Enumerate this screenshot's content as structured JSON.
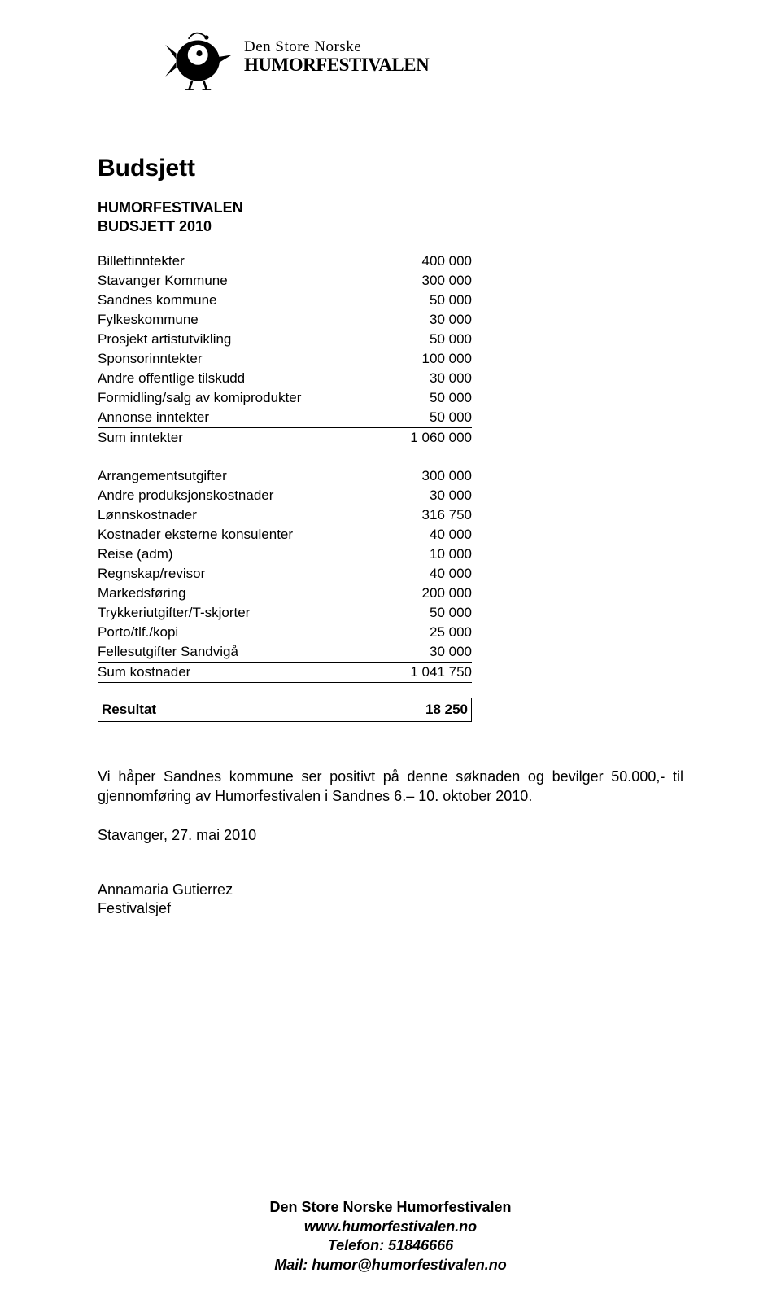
{
  "logo": {
    "line1": "Den Store Norske",
    "line2": "HUMORFESTIVALEN"
  },
  "title": "Budsjett",
  "subtitle1": "HUMORFESTIVALEN",
  "subtitle2": "BUDSJETT 2010",
  "income_rows": [
    {
      "label": "Billettinntekter",
      "value": "400 000"
    },
    {
      "label": "Stavanger Kommune",
      "value": "300 000"
    },
    {
      "label": "Sandnes kommune",
      "value": "50 000"
    },
    {
      "label": "Fylkeskommune",
      "value": "30 000"
    },
    {
      "label": "Prosjekt artistutvikling",
      "value": "50 000"
    },
    {
      "label": "Sponsorinntekter",
      "value": "100 000"
    },
    {
      "label": "Andre offentlige tilskudd",
      "value": "30 000"
    },
    {
      "label": "Formidling/salg av komiprodukter",
      "value": "50 000"
    },
    {
      "label": "Annonse inntekter",
      "value": "50 000"
    }
  ],
  "income_sum": {
    "label": "Sum inntekter",
    "value": "1 060 000"
  },
  "expense_rows": [
    {
      "label": "Arrangementsutgifter",
      "value": "300 000"
    },
    {
      "label": "Andre produksjonskostnader",
      "value": "30 000"
    },
    {
      "label": "Lønnskostnader",
      "value": "316 750"
    },
    {
      "label": "Kostnader eksterne konsulenter",
      "value": "40 000"
    },
    {
      "label": "Reise (adm)",
      "value": "10 000"
    },
    {
      "label": "Regnskap/revisor",
      "value": "40 000"
    },
    {
      "label": "Markedsføring",
      "value": "200 000"
    },
    {
      "label": "Trykkeriutgifter/T-skjorter",
      "value": "50 000"
    },
    {
      "label": "Porto/tlf./kopi",
      "value": "25 000"
    },
    {
      "label": "Fellesutgifter Sandvigå",
      "value": "30 000"
    }
  ],
  "expense_sum": {
    "label": "Sum kostnader",
    "value": "1 041 750"
  },
  "result": {
    "label": "Resultat",
    "value": "18 250"
  },
  "body_text": "Vi håper Sandnes kommune ser positivt på denne søknaden og bevilger 50.000,- til gjennomføring av Humorfestivalen i Sandnes 6.– 10. oktober 2010.",
  "sign_date": "Stavanger, 27. mai 2010",
  "sign_name": "Annamaria Gutierrez",
  "sign_title": "Festivalsjef",
  "footer": {
    "line1": "Den Store Norske Humorfestivalen",
    "line2": "www.humorfestivalen.no",
    "line3": "Telefon: 51846666",
    "line4": "Mail: humor@humorfestivalen.no"
  }
}
